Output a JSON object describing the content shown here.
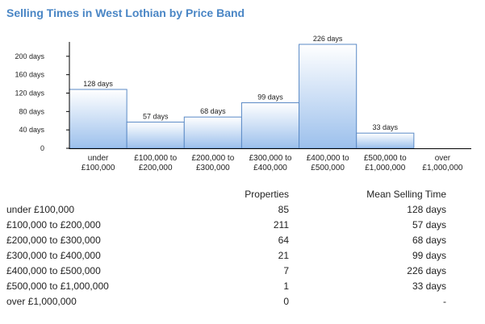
{
  "title": "Selling Times in West Lothian by Price Band",
  "chart_data": {
    "type": "bar",
    "title": "Selling Times in West Lothian by Price Band",
    "categories": [
      [
        "under",
        "£100,000"
      ],
      [
        "£100,000 to",
        "£200,000"
      ],
      [
        "£200,000 to",
        "£300,000"
      ],
      [
        "£300,000 to",
        "£400,000"
      ],
      [
        "£400,000 to",
        "£500,000"
      ],
      [
        "£500,000 to",
        "£1,000,000"
      ],
      [
        "over",
        "£1,000,000"
      ]
    ],
    "values": [
      128,
      57,
      68,
      99,
      226,
      33,
      0
    ],
    "data_labels": [
      "128 days",
      "57 days",
      "68 days",
      "99 days",
      "226 days",
      "33 days",
      ""
    ],
    "ylim": [
      0,
      226
    ],
    "yticks": [
      0,
      40,
      80,
      120,
      160,
      200
    ],
    "ytick_labels": [
      "0",
      "40 days",
      "80 days",
      "120 days",
      "160 days",
      "200 days"
    ],
    "grid": false,
    "colors": {
      "bar_top": "#ffffff",
      "bar_bottom": "#9cc0ec",
      "bar_border": "#5a8ac6",
      "axis": "#000000",
      "title": "#4a86c5"
    }
  },
  "table": {
    "headers": [
      "",
      "Properties",
      "Mean Selling Time"
    ],
    "rows": [
      [
        "under £100,000",
        "85",
        "128 days"
      ],
      [
        "£100,000 to £200,000",
        "211",
        "57 days"
      ],
      [
        "£200,000 to £300,000",
        "64",
        "68 days"
      ],
      [
        "£300,000 to £400,000",
        "21",
        "99 days"
      ],
      [
        "£400,000 to £500,000",
        "7",
        "226 days"
      ],
      [
        "£500,000 to £1,000,000",
        "1",
        "33 days"
      ],
      [
        "over £1,000,000",
        "0",
        "-"
      ]
    ]
  }
}
